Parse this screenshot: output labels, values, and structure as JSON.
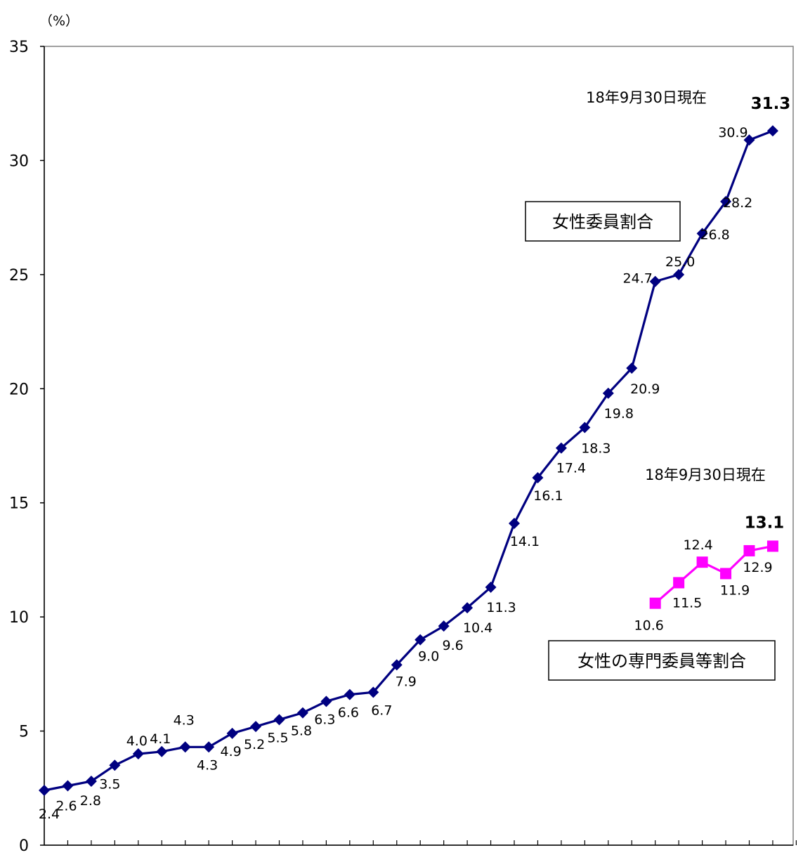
{
  "chart_data": {
    "type": "line",
    "unit_label": "（%）",
    "ylim": [
      0,
      35
    ],
    "yticks": [
      "0",
      "5",
      "10",
      "15",
      "20",
      "25",
      "30",
      "35"
    ],
    "x_count": 33,
    "series": [
      {
        "name": "女性委員割合",
        "color": "#000080",
        "marker": "diamond",
        "x_start": 0,
        "values": [
          2.4,
          2.6,
          2.8,
          3.5,
          4.0,
          4.1,
          4.3,
          4.3,
          4.9,
          5.2,
          5.5,
          5.8,
          6.3,
          6.6,
          6.7,
          7.9,
          9.0,
          9.6,
          10.4,
          11.3,
          14.1,
          16.1,
          17.4,
          18.3,
          19.8,
          20.9,
          24.7,
          25.0,
          26.8,
          28.2,
          30.9,
          31.3
        ],
        "labels": [
          "2.4",
          "2.6",
          "2.8",
          "3.5",
          "4.0",
          "4.1",
          "4.3",
          "4.3",
          "4.9",
          "5.2",
          "5.5",
          "5.8",
          "6.3",
          "6.6",
          "6.7",
          "7.9",
          "9.0",
          "9.6",
          "10.4",
          "11.3",
          "14.1",
          "16.1",
          "17.4",
          "18.3",
          "19.8",
          "20.9",
          "24.7",
          "25.0",
          "26.8",
          "28.2",
          "30.9",
          "31.3"
        ],
        "series_box_label": "女性委員割合",
        "note": "18年9月30日現在"
      },
      {
        "name": "女性の専門委員等割合",
        "color": "#ff00ff",
        "marker": "square",
        "x_start": 26,
        "values": [
          10.6,
          11.5,
          12.4,
          11.9,
          12.9,
          13.1
        ],
        "labels": [
          "10.6",
          "11.5",
          "12.4",
          "11.9",
          "12.9",
          "13.1"
        ],
        "series_box_label": "女性の専門委員等割合",
        "note": "18年9月30日現在"
      }
    ]
  }
}
